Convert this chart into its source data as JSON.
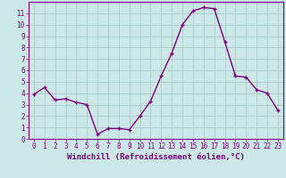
{
  "x": [
    0,
    1,
    2,
    3,
    4,
    5,
    6,
    7,
    8,
    9,
    10,
    11,
    12,
    13,
    14,
    15,
    16,
    17,
    18,
    19,
    20,
    21,
    22,
    23
  ],
  "y": [
    3.9,
    4.5,
    3.4,
    3.5,
    3.2,
    3.0,
    0.4,
    0.9,
    0.9,
    0.8,
    2.0,
    3.3,
    5.5,
    7.5,
    10.0,
    11.2,
    11.5,
    11.4,
    8.5,
    5.5,
    5.4,
    4.3,
    4.0,
    2.5
  ],
  "line_color": "#800080",
  "marker_color": "#800080",
  "bg_color": "#cce8e8",
  "grid_color": "#aacccc",
  "xlabel": "Windchill (Refroidissement éolien,°C)",
  "ylabel": "",
  "xlim": [
    -0.5,
    23.5
  ],
  "ylim": [
    0,
    12
  ],
  "yticks": [
    0,
    1,
    2,
    3,
    4,
    5,
    6,
    7,
    8,
    9,
    10,
    11
  ],
  "xticks": [
    0,
    1,
    2,
    3,
    4,
    5,
    6,
    7,
    8,
    9,
    10,
    11,
    12,
    13,
    14,
    15,
    16,
    17,
    18,
    19,
    20,
    21,
    22,
    23
  ],
  "tick_fontsize": 5.5,
  "xlabel_fontsize": 6.5,
  "axis_color": "#800080",
  "spine_color": "#800080",
  "line_width": 1.0,
  "marker_size": 2.5
}
